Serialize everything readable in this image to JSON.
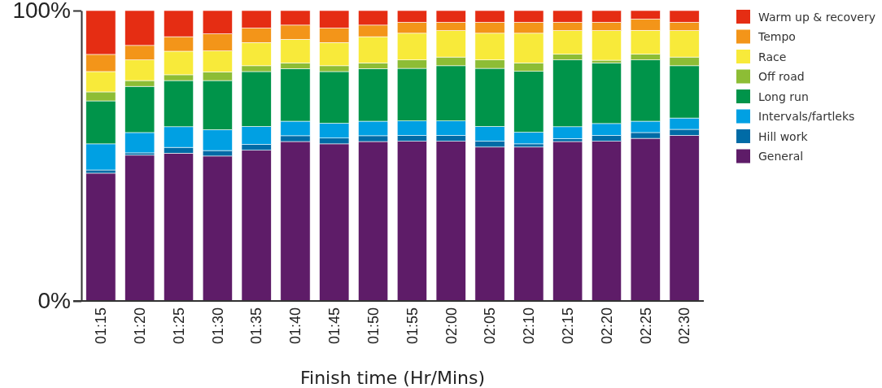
{
  "chart_data": {
    "type": "bar",
    "stacked": true,
    "xlabel": "Finish time (Hr/Mins)",
    "categories": [
      "01:15",
      "01:20",
      "01:25",
      "01:30",
      "01:35",
      "01:40",
      "01:45",
      "01:50",
      "01:55",
      "02:00",
      "02:05",
      "02:10",
      "02:15",
      "02:20",
      "02:25",
      "02:30"
    ],
    "ylim": [
      0,
      100
    ],
    "yticks": [
      {
        "value": 0,
        "label": "0%"
      },
      {
        "value": 100,
        "label": "100%"
      }
    ],
    "grid": false,
    "legend": "top right",
    "series": [
      {
        "name": "General",
        "color": "#5e1c68",
        "values": [
          44.0,
          50.2,
          50.9,
          49.9,
          51.9,
          54.9,
          54.1,
          54.9,
          55.0,
          55.0,
          53.0,
          53.0,
          54.9,
          55.0,
          56.0,
          57.0
        ]
      },
      {
        "name": "Hill work",
        "color": "#006ba6",
        "values": [
          1.1,
          0.8,
          2.0,
          1.9,
          2.0,
          2.0,
          2.0,
          2.0,
          2.0,
          2.0,
          2.0,
          1.1,
          1.0,
          2.0,
          2.0,
          2.1
        ]
      },
      {
        "name": "Intervals/fartleks",
        "color": "#00a0e3",
        "values": [
          9.0,
          7.0,
          7.1,
          7.2,
          6.2,
          5.0,
          5.1,
          5.0,
          5.0,
          5.0,
          5.1,
          4.0,
          4.1,
          4.1,
          3.9,
          3.9
        ]
      },
      {
        "name": "Long run",
        "color": "#00944a",
        "values": [
          14.8,
          15.9,
          15.9,
          16.9,
          18.9,
          18.1,
          17.8,
          18.1,
          18.1,
          19.0,
          20.0,
          21.0,
          23.0,
          20.9,
          21.1,
          18.0
        ]
      },
      {
        "name": "Off road",
        "color": "#8dbd35",
        "values": [
          3.1,
          2.0,
          2.0,
          3.0,
          2.0,
          2.0,
          2.0,
          2.0,
          2.9,
          3.0,
          2.9,
          2.9,
          2.0,
          0.9,
          2.0,
          3.0
        ]
      },
      {
        "name": "Race",
        "color": "#f8ea3a",
        "values": [
          7.0,
          7.1,
          8.1,
          7.2,
          8.0,
          8.1,
          8.0,
          9.0,
          9.2,
          9.1,
          9.2,
          10.2,
          8.1,
          10.2,
          8.2,
          9.1
        ]
      },
      {
        "name": "Tempo",
        "color": "#f39519",
        "values": [
          5.9,
          5.0,
          5.0,
          5.9,
          5.0,
          4.9,
          5.0,
          4.0,
          3.8,
          2.9,
          3.8,
          3.8,
          2.9,
          2.9,
          3.9,
          2.9
        ]
      },
      {
        "name": "Warm up & recovery",
        "color": "#e52d13",
        "values": [
          15.1,
          12.0,
          9.0,
          8.0,
          6.0,
          5.0,
          6.0,
          5.0,
          4.0,
          4.0,
          4.0,
          4.0,
          4.0,
          4.0,
          2.9,
          4.0
        ]
      }
    ]
  }
}
